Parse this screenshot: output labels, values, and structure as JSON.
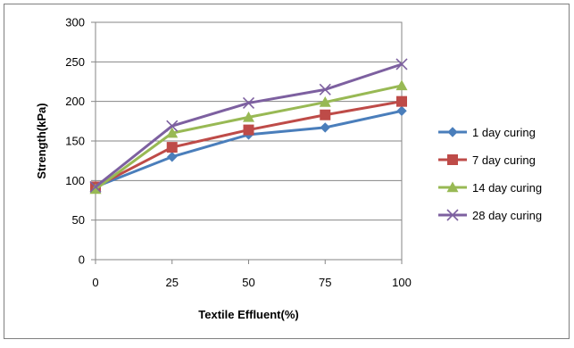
{
  "chart_data": {
    "type": "line",
    "title": "",
    "xlabel": "Textile Effluent(%)",
    "ylabel": "Strength(kPa)",
    "x": [
      0,
      25,
      50,
      75,
      100
    ],
    "xlim": [
      0,
      100
    ],
    "ylim": [
      0,
      300
    ],
    "yticks": [
      0,
      50,
      100,
      150,
      200,
      250,
      300
    ],
    "grid": "horizontal",
    "legend_position": "right",
    "series": [
      {
        "name": "1 day curing",
        "color": "#4a7ebb",
        "marker": "diamond",
        "values": [
          92,
          130,
          158,
          167,
          188
        ]
      },
      {
        "name": "7 day curing",
        "color": "#be4b48",
        "marker": "square",
        "values": [
          92,
          142,
          164,
          183,
          200
        ]
      },
      {
        "name": "14 day curing",
        "color": "#98b954",
        "marker": "triangle",
        "values": [
          89,
          160,
          180,
          199,
          220
        ]
      },
      {
        "name": "28 day curing",
        "color": "#7d60a0",
        "marker": "x",
        "values": [
          92,
          169,
          198,
          215,
          247
        ]
      }
    ]
  }
}
